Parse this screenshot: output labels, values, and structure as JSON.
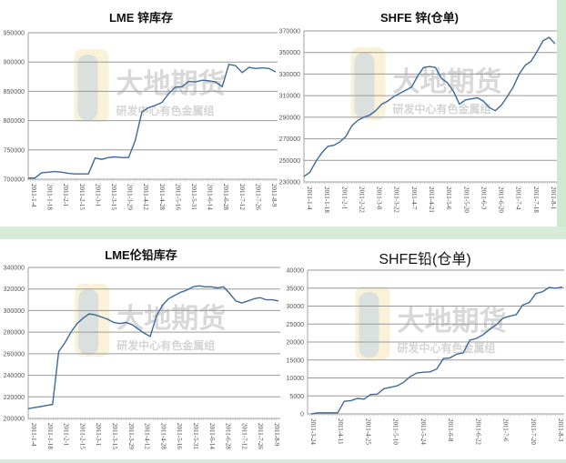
{
  "watermark": {
    "brand": "大地期货",
    "sub": "研发中心有色金属组"
  },
  "chart_data": [
    {
      "id": "lme-zinc",
      "type": "line",
      "title": "LME 锌库存",
      "xlabel": "",
      "ylabel": "",
      "ylim": [
        700000,
        950000
      ],
      "yticks": [
        "950000",
        "900000",
        "850000",
        "800000",
        "750000",
        "700000"
      ],
      "xticks": [
        "2011-1-4",
        "2011-1-18",
        "2011-2-1",
        "2011-2-15",
        "2011-3-1",
        "2011-3-15",
        "2011-3-29",
        "2011-4-12",
        "2011-4-28",
        "2011-5-16",
        "2011-5-31",
        "2011-6-14",
        "2011-6-28",
        "2011-7-12",
        "2011-7-26",
        "2011-8-9"
      ],
      "grid": true,
      "series": [
        {
          "name": "LME 锌库存",
          "color": "#3d6a9a",
          "values": [
            702000,
            702000,
            711000,
            712000,
            713000,
            712000,
            710000,
            709000,
            709000,
            709000,
            736000,
            734000,
            737000,
            738000,
            737000,
            737000,
            766000,
            815000,
            822000,
            826000,
            831000,
            846000,
            857000,
            858000,
            867000,
            866000,
            869000,
            868000,
            866000,
            858000,
            896000,
            894000,
            882000,
            891000,
            889000,
            890000,
            889000,
            883000
          ]
        }
      ]
    },
    {
      "id": "shfe-zinc",
      "type": "line",
      "title": "SHFE 锌(仓单)",
      "xlabel": "",
      "ylabel": "",
      "ylim": [
        230000,
        370000
      ],
      "yticks": [
        "370000",
        "350000",
        "330000",
        "310000",
        "290000",
        "270000",
        "250000",
        "230000"
      ],
      "xticks": [
        "2011-1-4",
        "2011-1-18",
        "2011-2-1",
        "2011-2-22",
        "2011-3-8",
        "2011-3-22",
        "2011-4-7",
        "2011-4-21",
        "2011-5-6",
        "2011-5-20",
        "2011-6-3",
        "2011-6-20",
        "2011-7-4",
        "2011-7-18",
        "2011-8-1"
      ],
      "grid": true,
      "series": [
        {
          "name": "SHFE 锌(仓单)",
          "color": "#3d6a9a",
          "values": [
            235000,
            239000,
            249000,
            257000,
            263000,
            264000,
            267000,
            272000,
            282000,
            287000,
            290000,
            292000,
            296000,
            302000,
            305000,
            309000,
            312000,
            315000,
            318000,
            328000,
            336000,
            337000,
            336000,
            326000,
            322000,
            314000,
            302000,
            306000,
            307000,
            308000,
            305000,
            299000,
            296000,
            301000,
            309000,
            318000,
            330000,
            338000,
            342000,
            351000,
            361000,
            364000,
            358000
          ]
        }
      ]
    },
    {
      "id": "lme-lead",
      "type": "line",
      "title": "LME伦铅库存",
      "xlabel": "",
      "ylabel": "",
      "ylim": [
        200000,
        340000
      ],
      "yticks": [
        "340000",
        "320000",
        "300000",
        "280000",
        "260000",
        "240000",
        "220000",
        "200000"
      ],
      "xticks": [
        "2011-1-4",
        "2011-1-18",
        "2011-2-1",
        "2011-2-15",
        "2011-3-1",
        "2011-3-15",
        "2011-3-29",
        "2011-4-12",
        "2011-4-28",
        "2011-5-16",
        "2011-5-31",
        "2011-6-14",
        "2011-6-28",
        "2011-7-12",
        "2011-7-26",
        "2011-8-9"
      ],
      "grid": true,
      "series": [
        {
          "name": "LME伦铅库存",
          "color": "#3d6a9a",
          "values": [
            209000,
            210000,
            211000,
            212000,
            213000,
            262000,
            270000,
            280000,
            288000,
            293000,
            297000,
            296000,
            294000,
            292000,
            289000,
            288000,
            289000,
            287000,
            283000,
            279000,
            276000,
            295000,
            305000,
            311000,
            314000,
            317000,
            319000,
            322000,
            323000,
            322000,
            322000,
            321000,
            322000,
            316000,
            309000,
            307000,
            309000,
            311000,
            312000,
            310000,
            310000,
            309000
          ]
        }
      ]
    },
    {
      "id": "shfe-lead",
      "type": "line",
      "title": "SHFE铅(仓单)",
      "xlabel": "",
      "ylabel": "",
      "ylim": [
        0,
        40000
      ],
      "yticks": [
        "40000",
        "35000",
        "30000",
        "25000",
        "20000",
        "15000",
        "10000",
        "5000",
        "0"
      ],
      "xticks": [
        "2011-3-24",
        "2011-4-11",
        "2011-4-25",
        "2011-5-10",
        "2011-5-24",
        "2011-6-8",
        "2011-6-22",
        "2011-7-6",
        "2011-7-20",
        "2011-8-3"
      ],
      "grid": true,
      "series": [
        {
          "name": "SHFE铅(仓单)",
          "color": "#3d6a9a",
          "values": [
            0,
            300,
            300,
            300,
            300,
            3500,
            3700,
            4300,
            4100,
            5400,
            5500,
            7000,
            7400,
            7800,
            8800,
            10400,
            11400,
            11600,
            11700,
            12500,
            15400,
            15600,
            16600,
            17000,
            20500,
            21000,
            22000,
            23500,
            24800,
            26600,
            27200,
            27600,
            30300,
            31000,
            33500,
            34000,
            35200,
            35000,
            35300
          ]
        }
      ]
    }
  ]
}
